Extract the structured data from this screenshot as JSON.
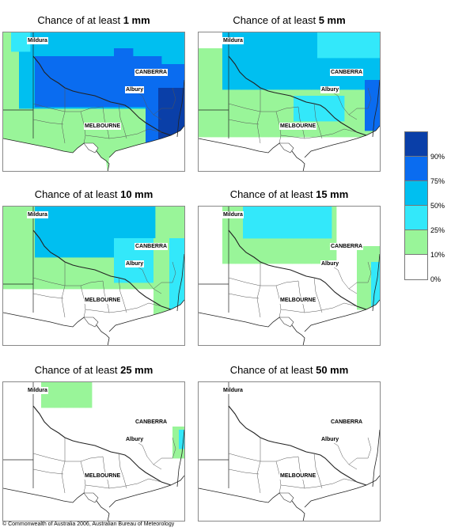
{
  "panels": [
    {
      "prefix": "Chance of at least ",
      "amount": "1 mm",
      "level": 6
    },
    {
      "prefix": "Chance of at least ",
      "amount": "5 mm",
      "level": 5
    },
    {
      "prefix": "Chance of at least ",
      "amount": "10 mm",
      "level": 4
    },
    {
      "prefix": "Chance of at least ",
      "amount": "15 mm",
      "level": 3
    },
    {
      "prefix": "Chance of at least ",
      "amount": "25 mm",
      "level": 2
    },
    {
      "prefix": "Chance of at least ",
      "amount": "50 mm",
      "level": 1
    }
  ],
  "places": {
    "mildura": "Mildura",
    "canberra": "CANBERRA",
    "albury": "Albury",
    "melbourne": "MELBOURNE"
  },
  "legend": {
    "colors": [
      "#0a3fa8",
      "#0a6cf0",
      "#00bff0",
      "#33e8fa",
      "#99f599",
      "#ffffff"
    ],
    "labels": [
      "90%",
      "75%",
      "50%",
      "25%",
      "10%",
      "0%"
    ]
  },
  "copyright": "© Commonwealth of Australia 2006, Australian Bureau of Meteorology"
}
